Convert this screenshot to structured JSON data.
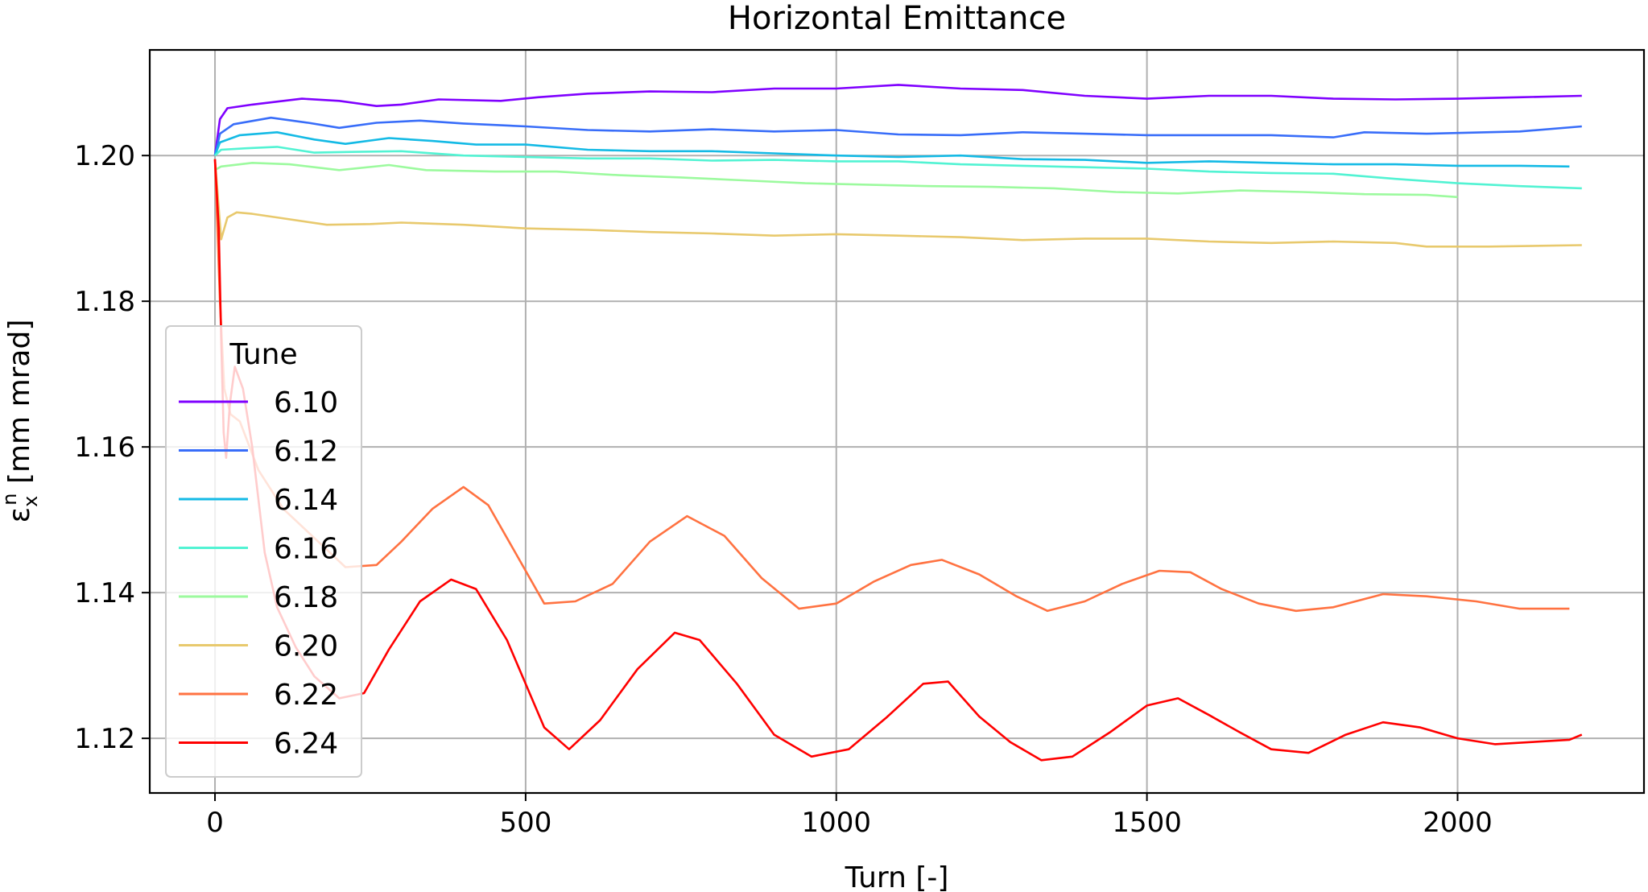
{
  "chart_data": {
    "type": "line",
    "title": "Horizontal Emittance",
    "xlabel": "Turn [-]",
    "ylabel": "ε_x^n [mm mrad]",
    "xlim": [
      -105,
      2300
    ],
    "ylim": [
      1.1125,
      1.2145
    ],
    "xticks": [
      0,
      500,
      1000,
      1500,
      2000
    ],
    "yticks": [
      1.12,
      1.14,
      1.16,
      1.18,
      1.2
    ],
    "xtick_labels": [
      "0",
      "500",
      "1000",
      "1500",
      "2000"
    ],
    "ytick_labels": [
      "1.12",
      "1.14",
      "1.16",
      "1.18",
      "1.20"
    ],
    "grid": true,
    "legend": {
      "title": "Tune",
      "placement": "lower-left"
    },
    "series": [
      {
        "name": "6.10",
        "color": "#7f00ff",
        "points": [
          [
            0,
            1.2
          ],
          [
            8,
            1.205
          ],
          [
            20,
            1.2065
          ],
          [
            60,
            1.207
          ],
          [
            140,
            1.2078
          ],
          [
            200,
            1.2075
          ],
          [
            260,
            1.2068
          ],
          [
            300,
            1.207
          ],
          [
            360,
            1.2077
          ],
          [
            460,
            1.2075
          ],
          [
            520,
            1.208
          ],
          [
            600,
            1.2085
          ],
          [
            700,
            1.2088
          ],
          [
            800,
            1.2087
          ],
          [
            900,
            1.2092
          ],
          [
            1000,
            1.2092
          ],
          [
            1100,
            1.2097
          ],
          [
            1200,
            1.2092
          ],
          [
            1300,
            1.209
          ],
          [
            1400,
            1.2082
          ],
          [
            1500,
            1.2078
          ],
          [
            1600,
            1.2082
          ],
          [
            1700,
            1.2082
          ],
          [
            1800,
            1.2078
          ],
          [
            1900,
            1.2077
          ],
          [
            2000,
            1.2078
          ],
          [
            2100,
            1.208
          ],
          [
            2200,
            1.2082
          ]
        ]
      },
      {
        "name": "6.12",
        "color": "#386df9",
        "points": [
          [
            0,
            1.2
          ],
          [
            8,
            1.203
          ],
          [
            30,
            1.2043
          ],
          [
            90,
            1.2052
          ],
          [
            150,
            1.2045
          ],
          [
            200,
            1.2038
          ],
          [
            260,
            1.2045
          ],
          [
            330,
            1.2048
          ],
          [
            400,
            1.2044
          ],
          [
            500,
            1.204
          ],
          [
            600,
            1.2035
          ],
          [
            700,
            1.2033
          ],
          [
            800,
            1.2036
          ],
          [
            900,
            1.2033
          ],
          [
            1000,
            1.2035
          ],
          [
            1100,
            1.2029
          ],
          [
            1200,
            1.2028
          ],
          [
            1300,
            1.2032
          ],
          [
            1400,
            1.203
          ],
          [
            1500,
            1.2028
          ],
          [
            1600,
            1.2028
          ],
          [
            1700,
            1.2028
          ],
          [
            1800,
            1.2025
          ],
          [
            1850,
            1.2032
          ],
          [
            1950,
            1.203
          ],
          [
            2100,
            1.2033
          ],
          [
            2200,
            1.204
          ]
        ]
      },
      {
        "name": "6.14",
        "color": "#14bae5",
        "points": [
          [
            0,
            1.2
          ],
          [
            8,
            1.2018
          ],
          [
            40,
            1.2028
          ],
          [
            100,
            1.2032
          ],
          [
            160,
            1.2022
          ],
          [
            210,
            1.2016
          ],
          [
            280,
            1.2024
          ],
          [
            350,
            1.202
          ],
          [
            420,
            1.2015
          ],
          [
            500,
            1.2015
          ],
          [
            600,
            1.2008
          ],
          [
            700,
            1.2006
          ],
          [
            800,
            1.2006
          ],
          [
            900,
            1.2003
          ],
          [
            1000,
            1.2
          ],
          [
            1100,
            1.1998
          ],
          [
            1200,
            1.2
          ],
          [
            1300,
            1.1995
          ],
          [
            1400,
            1.1994
          ],
          [
            1500,
            1.199
          ],
          [
            1600,
            1.1992
          ],
          [
            1700,
            1.199
          ],
          [
            1800,
            1.1988
          ],
          [
            1900,
            1.1988
          ],
          [
            2000,
            1.1986
          ],
          [
            2100,
            1.1986
          ],
          [
            2180,
            1.1985
          ]
        ]
      },
      {
        "name": "6.16",
        "color": "#52f3d3",
        "points": [
          [
            0,
            1.2
          ],
          [
            10,
            1.2008
          ],
          [
            50,
            1.201
          ],
          [
            100,
            1.2012
          ],
          [
            160,
            1.2004
          ],
          [
            220,
            1.2005
          ],
          [
            300,
            1.2006
          ],
          [
            400,
            1.2
          ],
          [
            500,
            1.1998
          ],
          [
            600,
            1.1996
          ],
          [
            700,
            1.1996
          ],
          [
            800,
            1.1993
          ],
          [
            900,
            1.1994
          ],
          [
            1000,
            1.1992
          ],
          [
            1100,
            1.1992
          ],
          [
            1200,
            1.1988
          ],
          [
            1300,
            1.1986
          ],
          [
            1400,
            1.1984
          ],
          [
            1500,
            1.1982
          ],
          [
            1600,
            1.1978
          ],
          [
            1700,
            1.1976
          ],
          [
            1800,
            1.1975
          ],
          [
            1900,
            1.1968
          ],
          [
            2000,
            1.1962
          ],
          [
            2100,
            1.1958
          ],
          [
            2200,
            1.1955
          ]
        ]
      },
      {
        "name": "6.18",
        "color": "#9cfa9e",
        "points": [
          [
            0,
            1.198
          ],
          [
            10,
            1.1985
          ],
          [
            60,
            1.199
          ],
          [
            120,
            1.1988
          ],
          [
            200,
            1.198
          ],
          [
            280,
            1.1987
          ],
          [
            340,
            1.198
          ],
          [
            450,
            1.1978
          ],
          [
            550,
            1.1978
          ],
          [
            650,
            1.1973
          ],
          [
            750,
            1.197
          ],
          [
            850,
            1.1966
          ],
          [
            950,
            1.1962
          ],
          [
            1050,
            1.196
          ],
          [
            1150,
            1.1958
          ],
          [
            1250,
            1.1957
          ],
          [
            1350,
            1.1955
          ],
          [
            1450,
            1.195
          ],
          [
            1550,
            1.1948
          ],
          [
            1650,
            1.1952
          ],
          [
            1750,
            1.195
          ],
          [
            1850,
            1.1947
          ],
          [
            1950,
            1.1946
          ],
          [
            2000,
            1.1943
          ]
        ]
      },
      {
        "name": "6.20",
        "color": "#e8c96d",
        "points": [
          [
            0,
            1.1995
          ],
          [
            10,
            1.1885
          ],
          [
            20,
            1.1915
          ],
          [
            35,
            1.1922
          ],
          [
            60,
            1.192
          ],
          [
            100,
            1.1915
          ],
          [
            180,
            1.1905
          ],
          [
            250,
            1.1906
          ],
          [
            300,
            1.1908
          ],
          [
            400,
            1.1905
          ],
          [
            500,
            1.19
          ],
          [
            600,
            1.1898
          ],
          [
            700,
            1.1895
          ],
          [
            800,
            1.1893
          ],
          [
            900,
            1.189
          ],
          [
            1000,
            1.1892
          ],
          [
            1100,
            1.189
          ],
          [
            1200,
            1.1888
          ],
          [
            1300,
            1.1884
          ],
          [
            1400,
            1.1886
          ],
          [
            1500,
            1.1886
          ],
          [
            1600,
            1.1882
          ],
          [
            1700,
            1.188
          ],
          [
            1800,
            1.1882
          ],
          [
            1900,
            1.188
          ],
          [
            1950,
            1.1875
          ],
          [
            2050,
            1.1875
          ],
          [
            2200,
            1.1877
          ]
        ]
      },
      {
        "name": "6.22",
        "color": "#ff7241",
        "points": [
          [
            0,
            1.1995
          ],
          [
            8,
            1.18
          ],
          [
            15,
            1.168
          ],
          [
            25,
            1.1645
          ],
          [
            40,
            1.1635
          ],
          [
            70,
            1.1568
          ],
          [
            110,
            1.1515
          ],
          [
            160,
            1.1475
          ],
          [
            210,
            1.1435
          ],
          [
            260,
            1.1438
          ],
          [
            300,
            1.147
          ],
          [
            350,
            1.1515
          ],
          [
            400,
            1.1545
          ],
          [
            440,
            1.152
          ],
          [
            480,
            1.146
          ],
          [
            530,
            1.1385
          ],
          [
            580,
            1.1388
          ],
          [
            640,
            1.1412
          ],
          [
            700,
            1.147
          ],
          [
            760,
            1.1505
          ],
          [
            820,
            1.1478
          ],
          [
            880,
            1.142
          ],
          [
            940,
            1.1378
          ],
          [
            1000,
            1.1385
          ],
          [
            1060,
            1.1415
          ],
          [
            1120,
            1.1438
          ],
          [
            1170,
            1.1445
          ],
          [
            1230,
            1.1425
          ],
          [
            1290,
            1.1395
          ],
          [
            1340,
            1.1375
          ],
          [
            1400,
            1.1388
          ],
          [
            1460,
            1.1412
          ],
          [
            1520,
            1.143
          ],
          [
            1570,
            1.1428
          ],
          [
            1620,
            1.1405
          ],
          [
            1680,
            1.1385
          ],
          [
            1740,
            1.1375
          ],
          [
            1800,
            1.138
          ],
          [
            1880,
            1.1398
          ],
          [
            1950,
            1.1395
          ],
          [
            2030,
            1.1388
          ],
          [
            2100,
            1.1378
          ],
          [
            2180,
            1.1378
          ]
        ]
      },
      {
        "name": "6.24",
        "color": "#ff0000",
        "points": [
          [
            0,
            1.1995
          ],
          [
            6,
            1.19
          ],
          [
            10,
            1.175
          ],
          [
            14,
            1.162
          ],
          [
            18,
            1.1585
          ],
          [
            24,
            1.166
          ],
          [
            32,
            1.171
          ],
          [
            45,
            1.168
          ],
          [
            60,
            1.16
          ],
          [
            80,
            1.1455
          ],
          [
            100,
            1.138
          ],
          [
            130,
            1.1325
          ],
          [
            160,
            1.1285
          ],
          [
            200,
            1.1255
          ],
          [
            240,
            1.1262
          ],
          [
            280,
            1.1322
          ],
          [
            330,
            1.1388
          ],
          [
            380,
            1.1418
          ],
          [
            420,
            1.1405
          ],
          [
            470,
            1.1335
          ],
          [
            530,
            1.1215
          ],
          [
            570,
            1.1185
          ],
          [
            620,
            1.1225
          ],
          [
            680,
            1.1295
          ],
          [
            740,
            1.1345
          ],
          [
            780,
            1.1335
          ],
          [
            840,
            1.1275
          ],
          [
            900,
            1.1205
          ],
          [
            960,
            1.1175
          ],
          [
            1020,
            1.1185
          ],
          [
            1080,
            1.1228
          ],
          [
            1140,
            1.1275
          ],
          [
            1180,
            1.1278
          ],
          [
            1230,
            1.123
          ],
          [
            1280,
            1.1195
          ],
          [
            1330,
            1.117
          ],
          [
            1380,
            1.1175
          ],
          [
            1440,
            1.1208
          ],
          [
            1500,
            1.1245
          ],
          [
            1550,
            1.1255
          ],
          [
            1600,
            1.1232
          ],
          [
            1650,
            1.1208
          ],
          [
            1700,
            1.1185
          ],
          [
            1760,
            1.118
          ],
          [
            1820,
            1.1205
          ],
          [
            1880,
            1.1222
          ],
          [
            1940,
            1.1215
          ],
          [
            2000,
            1.12
          ],
          [
            2060,
            1.1192
          ],
          [
            2120,
            1.1195
          ],
          [
            2180,
            1.1198
          ],
          [
            2200,
            1.1205
          ]
        ]
      }
    ]
  }
}
